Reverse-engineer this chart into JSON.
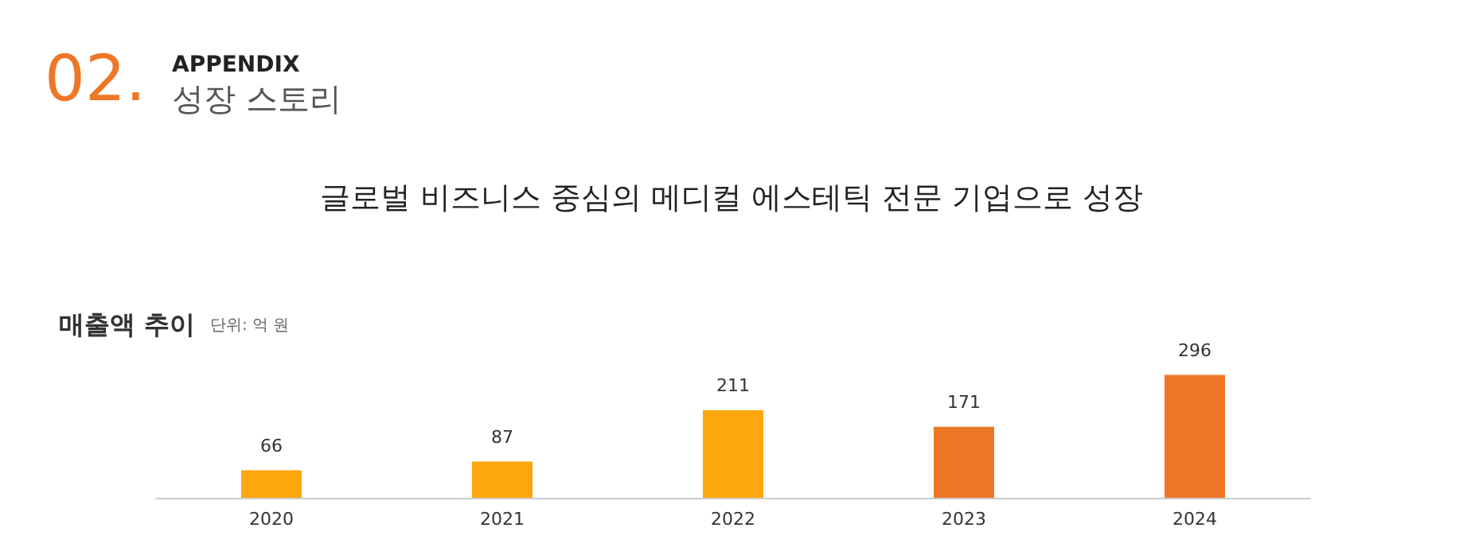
{
  "chart_data": {
    "type": "bar",
    "title": "글로벌 비즈니스 중심의 메디컬 에스테틱 전문 기업으로 성장",
    "subtitle": "매출액 추이",
    "annotations": [
      "02.",
      "APPENDIX",
      "성장 스토리",
      "단위: 억 원"
    ],
    "categories": [
      "2020",
      "2021",
      "2022",
      "2023",
      "2024"
    ],
    "values": [
      66,
      87,
      211,
      171,
      296
    ],
    "colors": [
      "#fea60d",
      "#fea60d",
      "#fea60d",
      "#ee7726",
      "#ee7726"
    ],
    "data_labels": true
  }
}
